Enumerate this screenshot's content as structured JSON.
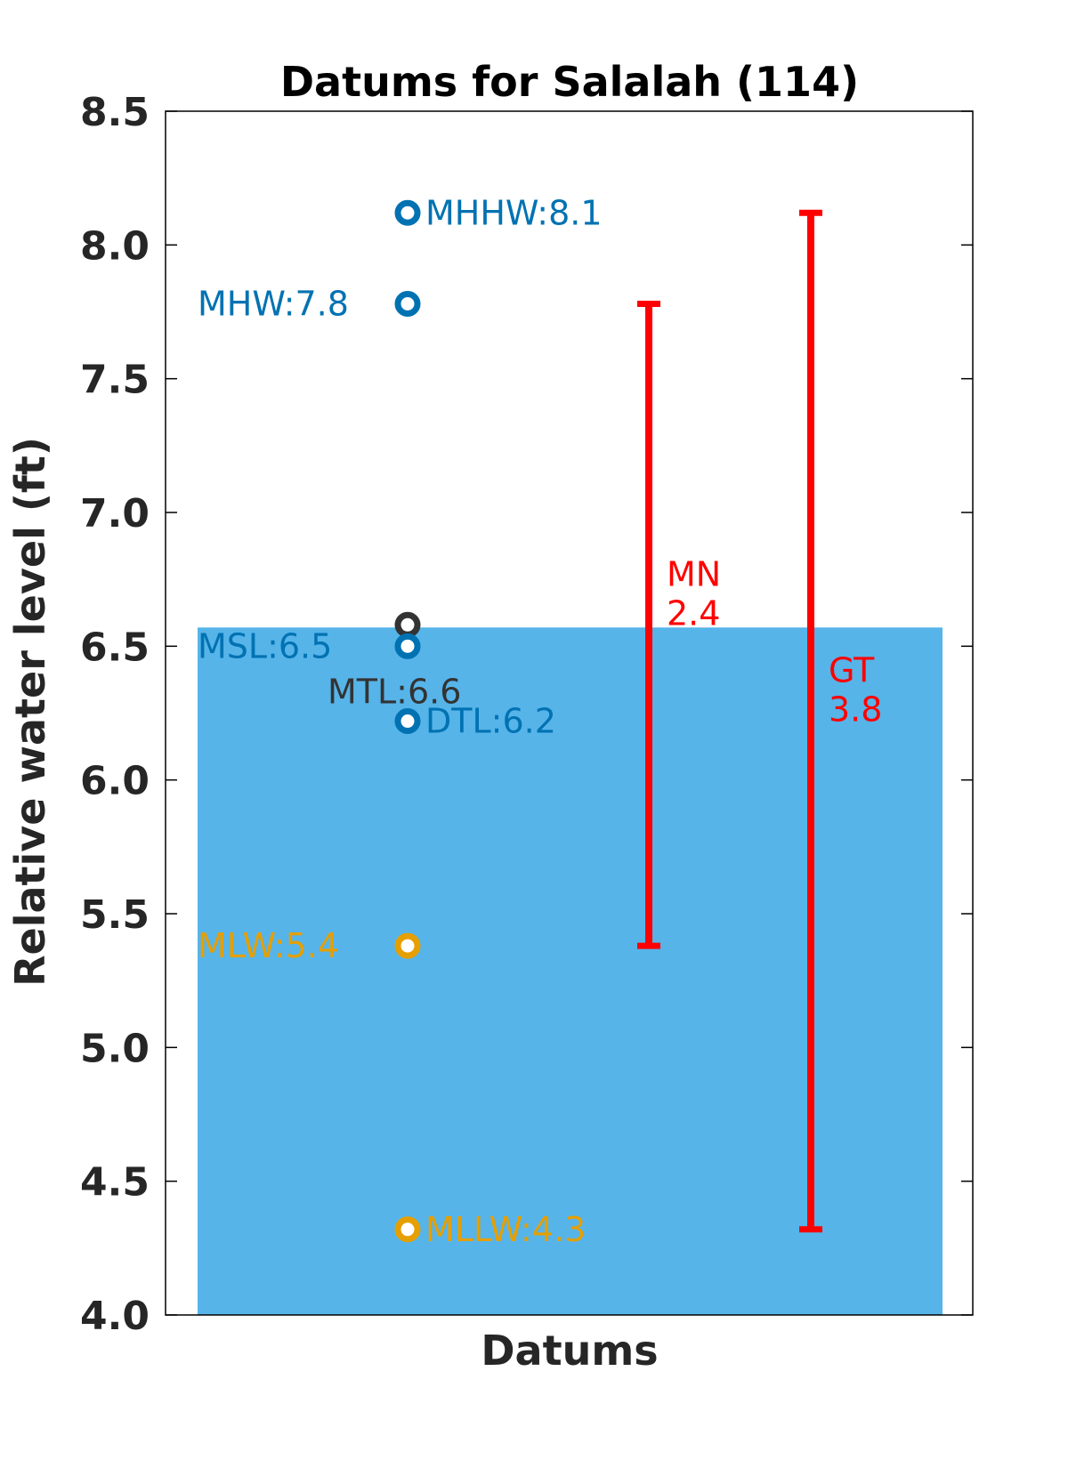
{
  "chart_data": {
    "type": "scatter",
    "title": "Datums for Salalah (114)",
    "xlabel": "Datums",
    "ylabel": "Relative water level (ft)",
    "ylim": [
      4.0,
      8.5
    ],
    "yticks": [
      "4.0",
      "4.5",
      "5.0",
      "5.5",
      "6.0",
      "6.5",
      "7.0",
      "7.5",
      "8.0",
      "8.5"
    ],
    "grid": false,
    "shaded_region": {
      "from": 4.0,
      "to": 6.57,
      "color": "#56B4E9"
    },
    "points": [
      {
        "label": "MHHW:8.1",
        "value": 8.12,
        "color": "#0072B2",
        "label_side": "right"
      },
      {
        "label": "MHW:7.8",
        "value": 7.78,
        "color": "#0072B2",
        "label_side": "left"
      },
      {
        "label": "MTL:6.6",
        "value": 6.58,
        "color": "#333333",
        "label_side": "left-below"
      },
      {
        "label": "MSL:6.5",
        "value": 6.5,
        "color": "#0072B2",
        "label_side": "left"
      },
      {
        "label": "DTL:6.2",
        "value": 6.22,
        "color": "#0072B2",
        "label_side": "right"
      },
      {
        "label": "MLW:5.4",
        "value": 5.38,
        "color": "#E69F00",
        "label_side": "left"
      },
      {
        "label": "MLLW:4.3",
        "value": 4.32,
        "color": "#E69F00",
        "label_side": "right"
      }
    ],
    "ranges": [
      {
        "name": "MN",
        "value_label": "2.4",
        "low": 5.38,
        "high": 7.78,
        "color": "#FF0000"
      },
      {
        "name": "GT",
        "value_label": "3.8",
        "low": 4.32,
        "high": 8.12,
        "color": "#FF0000"
      }
    ]
  }
}
